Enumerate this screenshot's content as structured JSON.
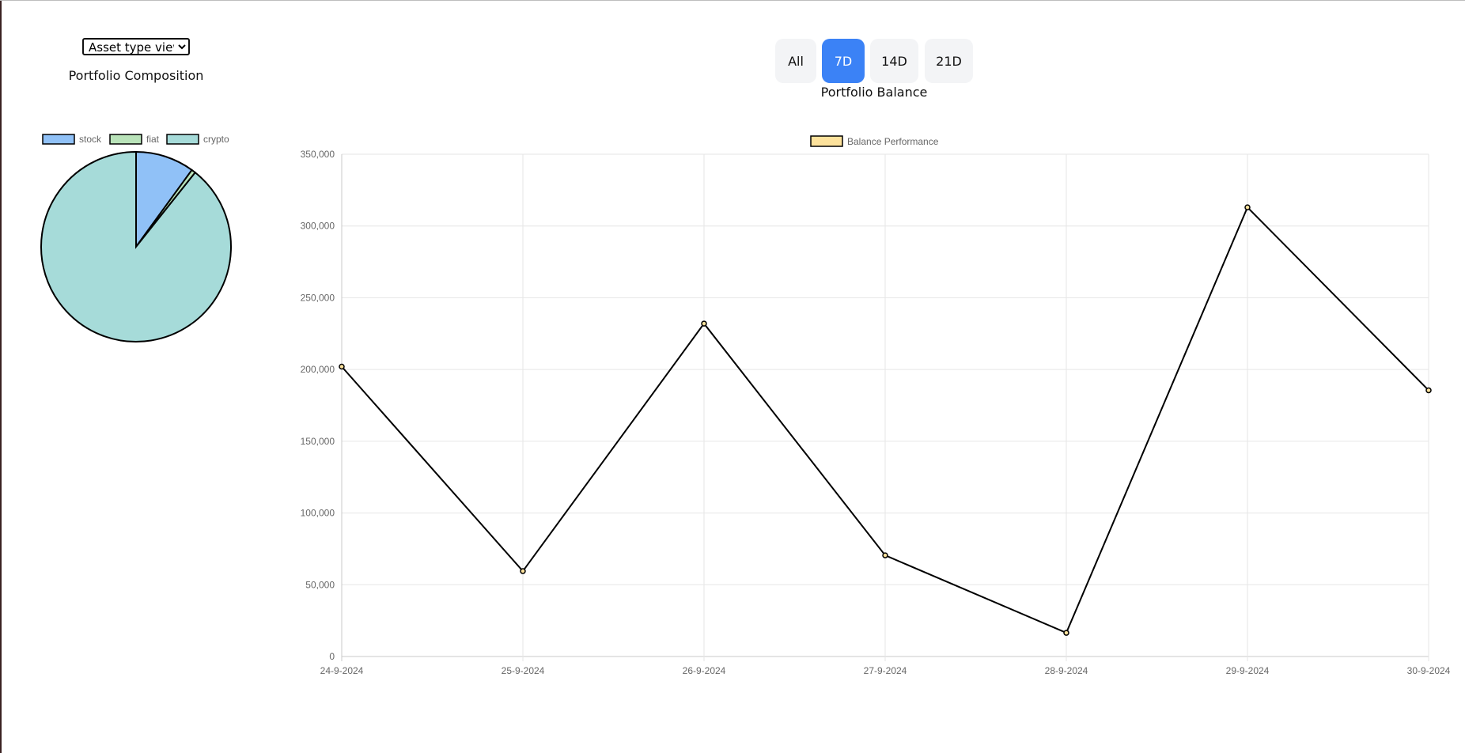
{
  "view_select": {
    "selected": "Asset type view"
  },
  "composition": {
    "title": "Portfolio Composition"
  },
  "balance": {
    "title": "Portfolio Balance"
  },
  "range_buttons": [
    {
      "label": "All",
      "active": false
    },
    {
      "label": "7D",
      "active": true
    },
    {
      "label": "14D",
      "active": false
    },
    {
      "label": "21D",
      "active": false
    }
  ],
  "colors": {
    "accent": "#3b82f6",
    "stock": "#90c1f7",
    "fiat": "#b9e3b9",
    "crypto": "#a6dbd9",
    "balance_legend": "#fde29c"
  },
  "chart_data": [
    {
      "type": "pie",
      "categories": [
        "stock",
        "fiat",
        "crypto"
      ],
      "values": [
        10.0,
        0.7,
        89.3
      ],
      "legend": "top"
    },
    {
      "type": "line",
      "series": [
        {
          "name": "Balance Performance",
          "values": [
            202000,
            59500,
            232000,
            70500,
            16500,
            313000,
            185500
          ]
        }
      ],
      "categories": [
        "24-9-2024",
        "25-9-2024",
        "26-9-2024",
        "27-9-2024",
        "28-9-2024",
        "29-9-2024",
        "30-9-2024"
      ],
      "ylim": [
        0,
        350000
      ],
      "y_ticks": [
        "0",
        "50,000",
        "100,000",
        "150,000",
        "200,000",
        "250,000",
        "300,000",
        "350,000"
      ],
      "grid": true,
      "legend": "top"
    }
  ]
}
